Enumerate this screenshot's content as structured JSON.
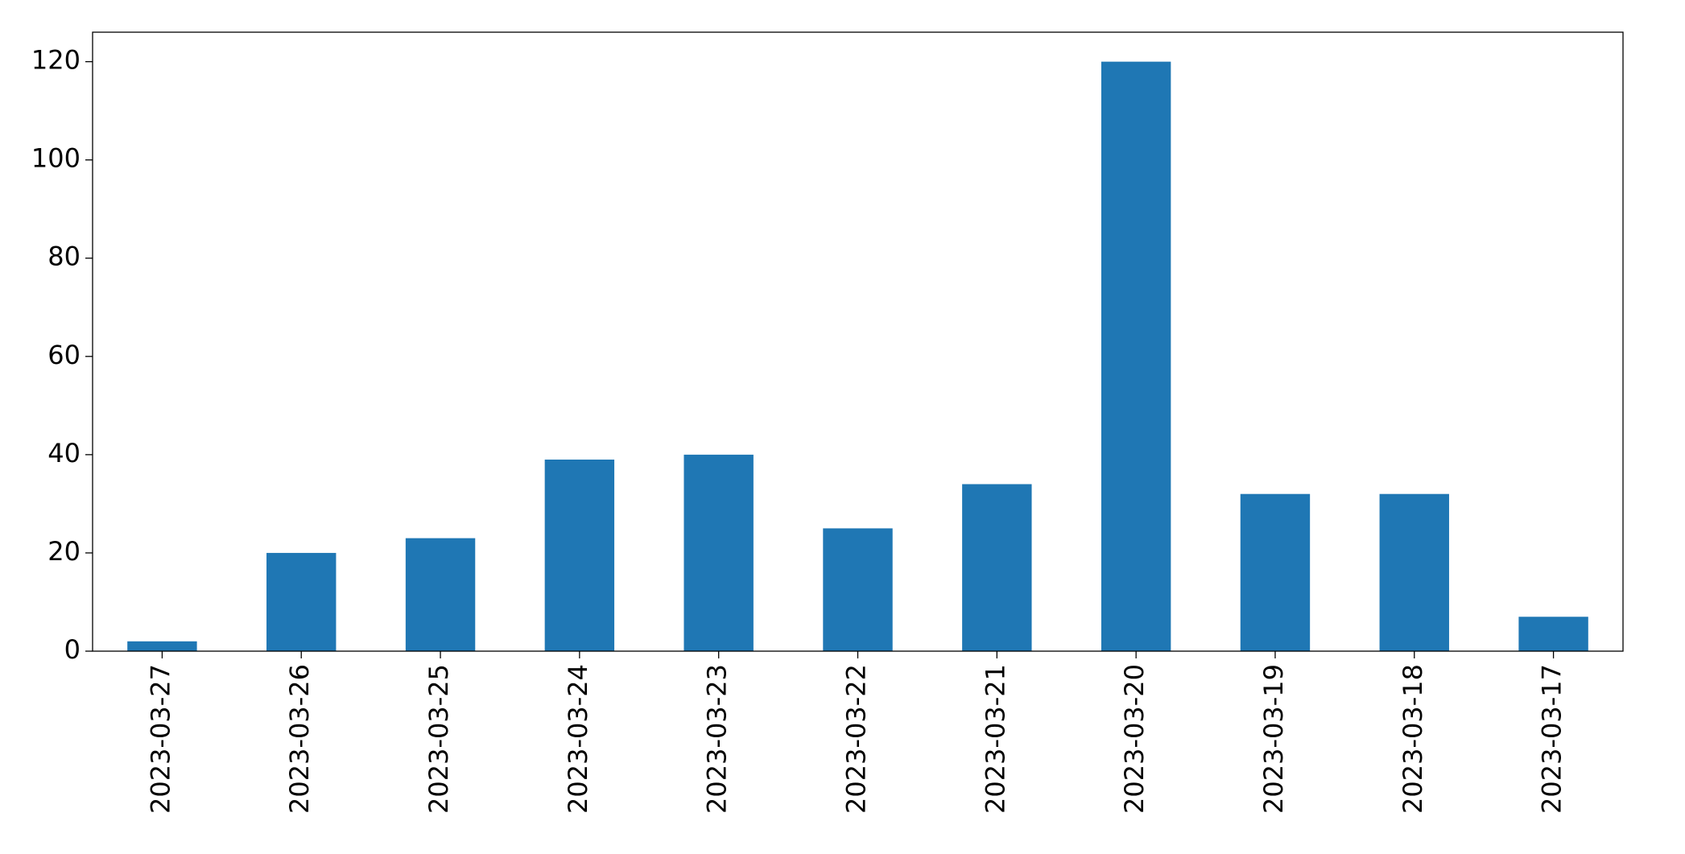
{
  "chart_data": {
    "type": "bar",
    "categories": [
      "2023-03-27",
      "2023-03-26",
      "2023-03-25",
      "2023-03-24",
      "2023-03-23",
      "2023-03-22",
      "2023-03-21",
      "2023-03-20",
      "2023-03-19",
      "2023-03-18",
      "2023-03-17"
    ],
    "values": [
      2,
      20,
      23,
      39,
      40,
      25,
      34,
      120,
      32,
      32,
      7
    ],
    "color": "#1f77b4",
    "ylim": [
      0,
      126
    ],
    "yticks": [
      0,
      20,
      40,
      60,
      80,
      100,
      120
    ],
    "grid": false
  }
}
